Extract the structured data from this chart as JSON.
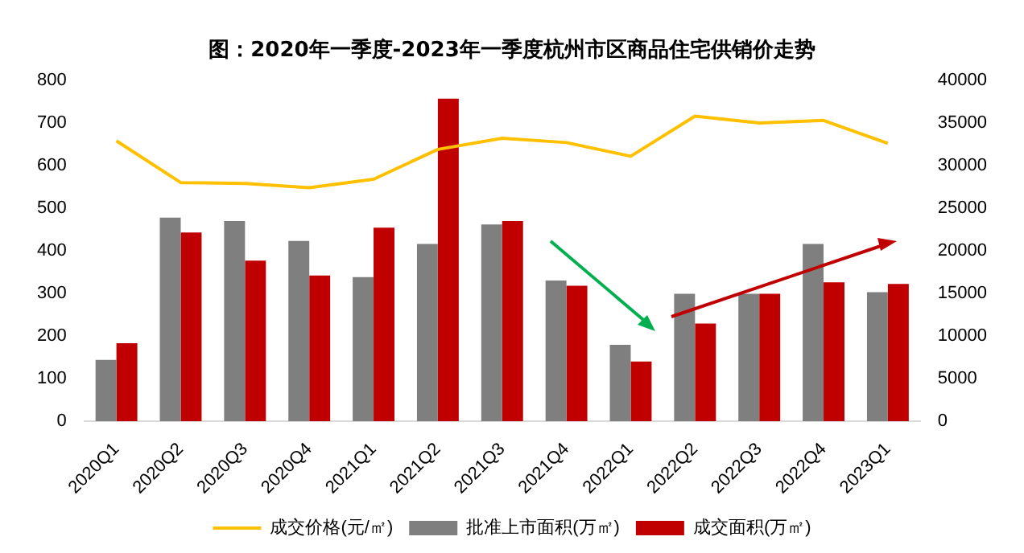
{
  "chart_data": {
    "type": "bar",
    "title": "图：2020年一季度-2023年一季度杭州市区商品住宅供销价走势",
    "categories": [
      "2020Q1",
      "2020Q2",
      "2020Q3",
      "2020Q4",
      "2021Q1",
      "2021Q2",
      "2021Q3",
      "2021Q4",
      "2022Q1",
      "2022Q2",
      "2022Q3",
      "2022Q4",
      "2023Q1"
    ],
    "series": [
      {
        "name": "批准上市面积(万㎡)",
        "color": "#7f7f7f",
        "values": [
          144,
          478,
          470,
          423,
          338,
          416,
          462,
          330,
          179,
          299,
          299,
          416,
          303
        ]
      },
      {
        "name": "成交面积(万㎡)",
        "color": "#c00000",
        "values": [
          183,
          443,
          377,
          342,
          454,
          757,
          470,
          318,
          140,
          229,
          299,
          326,
          322
        ]
      },
      {
        "name": "成交价格(元/㎡)",
        "type": "line",
        "axis": "y2",
        "color": "#ffc000",
        "values": [
          32900,
          28000,
          27900,
          27400,
          28400,
          31900,
          33200,
          32700,
          31100,
          35800,
          35000,
          35300,
          32600
        ]
      }
    ],
    "ylim": [
      0,
      800
    ],
    "yticks": [
      0,
      100,
      200,
      300,
      400,
      500,
      600,
      700,
      800
    ],
    "y2lim": [
      0,
      40000
    ],
    "y2ticks": [
      0,
      5000,
      10000,
      15000,
      20000,
      25000,
      30000,
      35000,
      40000
    ],
    "grid": false,
    "legend": "bottom",
    "marker": "none"
  }
}
